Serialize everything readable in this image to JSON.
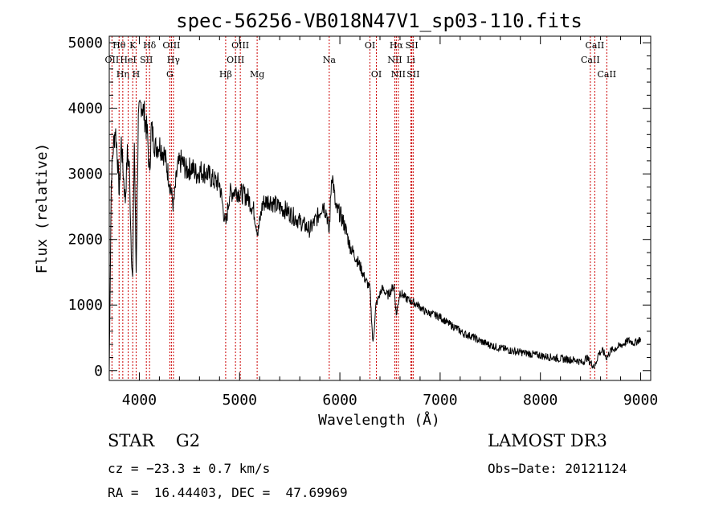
{
  "chart_data": {
    "type": "line",
    "title": "spec-56256-VB018N47V1_sp03-110.fits",
    "xlabel": "Wavelength (Å)",
    "ylabel": "Flux (relative)",
    "xlim": [
      3700,
      9100
    ],
    "ylim": [
      -150,
      5100
    ],
    "xticks": [
      4000,
      5000,
      6000,
      7000,
      8000,
      9000
    ],
    "yticks": [
      0,
      1000,
      2000,
      3000,
      4000,
      5000
    ],
    "series": [
      {
        "name": "flux",
        "x": [
          3700,
          3720,
          3740,
          3760,
          3780,
          3800,
          3820,
          3840,
          3860,
          3880,
          3900,
          3920,
          3933,
          3950,
          3968,
          3990,
          4020,
          4050,
          4080,
          4101,
          4120,
          4160,
          4200,
          4250,
          4300,
          4340,
          4380,
          4420,
          4470,
          4520,
          4570,
          4620,
          4680,
          4740,
          4800,
          4861,
          4900,
          4960,
          5020,
          5080,
          5140,
          5183,
          5230,
          5300,
          5380,
          5460,
          5540,
          5620,
          5700,
          5780,
          5830,
          5870,
          5893,
          5920,
          5960,
          6000,
          6050,
          6100,
          6150,
          6200,
          6250,
          6300,
          6330,
          6360,
          6420,
          6480,
          6540,
          6563,
          6600,
          6660,
          6720,
          6780,
          6850,
          6920,
          7000,
          7080,
          7160,
          7240,
          7320,
          7400,
          7480,
          7560,
          7640,
          7720,
          7800,
          7880,
          7960,
          8040,
          8120,
          8200,
          8280,
          8360,
          8420,
          8460,
          8500,
          8542,
          8580,
          8620,
          8662,
          8700,
          8760,
          8820,
          8880,
          8940,
          9000
        ],
        "y": [
          0,
          2900,
          3400,
          3700,
          3300,
          2700,
          3500,
          3000,
          2600,
          3300,
          3100,
          1800,
          1400,
          3500,
          1500,
          3800,
          4100,
          3900,
          3600,
          3000,
          3700,
          3400,
          3450,
          3300,
          2900,
          2500,
          3100,
          3200,
          3050,
          3100,
          3000,
          3050,
          3000,
          2900,
          2850,
          2200,
          2700,
          2750,
          2700,
          2650,
          2450,
          2100,
          2550,
          2600,
          2500,
          2450,
          2350,
          2250,
          2150,
          2350,
          2550,
          2400,
          2100,
          3050,
          2450,
          2400,
          2200,
          1900,
          1750,
          1600,
          1400,
          1250,
          400,
          1000,
          1250,
          1150,
          1300,
          850,
          1200,
          1100,
          1050,
          1000,
          900,
          860,
          820,
          720,
          650,
          560,
          520,
          450,
          400,
          360,
          330,
          300,
          280,
          260,
          240,
          220,
          200,
          180,
          170,
          160,
          120,
          200,
          120,
          60,
          260,
          300,
          200,
          300,
          350,
          400,
          460,
          420,
          490
        ]
      }
    ],
    "lines": [
      {
        "label": "OII",
        "wavelength": 3727,
        "row": 2
      },
      {
        "label": "Hθ",
        "wavelength": 3798,
        "row": 1
      },
      {
        "label": "Hη",
        "wavelength": 3835,
        "row": 3
      },
      {
        "label": "HeI",
        "wavelength": 3889,
        "row": 2
      },
      {
        "label": "K",
        "wavelength": 3934,
        "row": 1
      },
      {
        "label": "H",
        "wavelength": 3968,
        "row": 3
      },
      {
        "label": "SII",
        "wavelength": 4070,
        "row": 2
      },
      {
        "label": "Hδ",
        "wavelength": 4102,
        "row": 1
      },
      {
        "label": "OIII",
        "wavelength": 4320,
        "row": 1
      },
      {
        "label": "G",
        "wavelength": 4304,
        "row": 3
      },
      {
        "label": "Hγ",
        "wavelength": 4340,
        "row": 2
      },
      {
        "label": "Hβ",
        "wavelength": 4861,
        "row": 3
      },
      {
        "label": "OIII",
        "wavelength": 4959,
        "row": 2
      },
      {
        "label": "OIII",
        "wavelength": 5007,
        "row": 1
      },
      {
        "label": "Mg",
        "wavelength": 5175,
        "row": 3
      },
      {
        "label": "Na",
        "wavelength": 5894,
        "row": 2
      },
      {
        "label": "OI",
        "wavelength": 6300,
        "row": 1
      },
      {
        "label": "OI",
        "wavelength": 6364,
        "row": 3
      },
      {
        "label": "NII",
        "wavelength": 6548,
        "row": 2
      },
      {
        "label": "Hα",
        "wavelength": 6563,
        "row": 1
      },
      {
        "label": "NII",
        "wavelength": 6583,
        "row": 3
      },
      {
        "label": "Li",
        "wavelength": 6708,
        "row": 2
      },
      {
        "label": "SII",
        "wavelength": 6717,
        "row": 1
      },
      {
        "label": "SII",
        "wavelength": 6731,
        "row": 3
      },
      {
        "label": "CaII",
        "wavelength": 8498,
        "row": 2
      },
      {
        "label": "CaII",
        "wavelength": 8542,
        "row": 1
      },
      {
        "label": "CaII",
        "wavelength": 8662,
        "row": 3
      }
    ]
  },
  "info": {
    "star_class": "STAR    G2",
    "survey": "LAMOST DR3",
    "cz": "cz = −23.3 ± 0.7 km/s",
    "obs_date": "Obs−Date: 20121124",
    "radec": "RA =  16.44403, DEC =  47.69969"
  },
  "colors": {
    "axis": "#000000",
    "spectrum": "#000000",
    "line_markers": "#cc0000"
  }
}
